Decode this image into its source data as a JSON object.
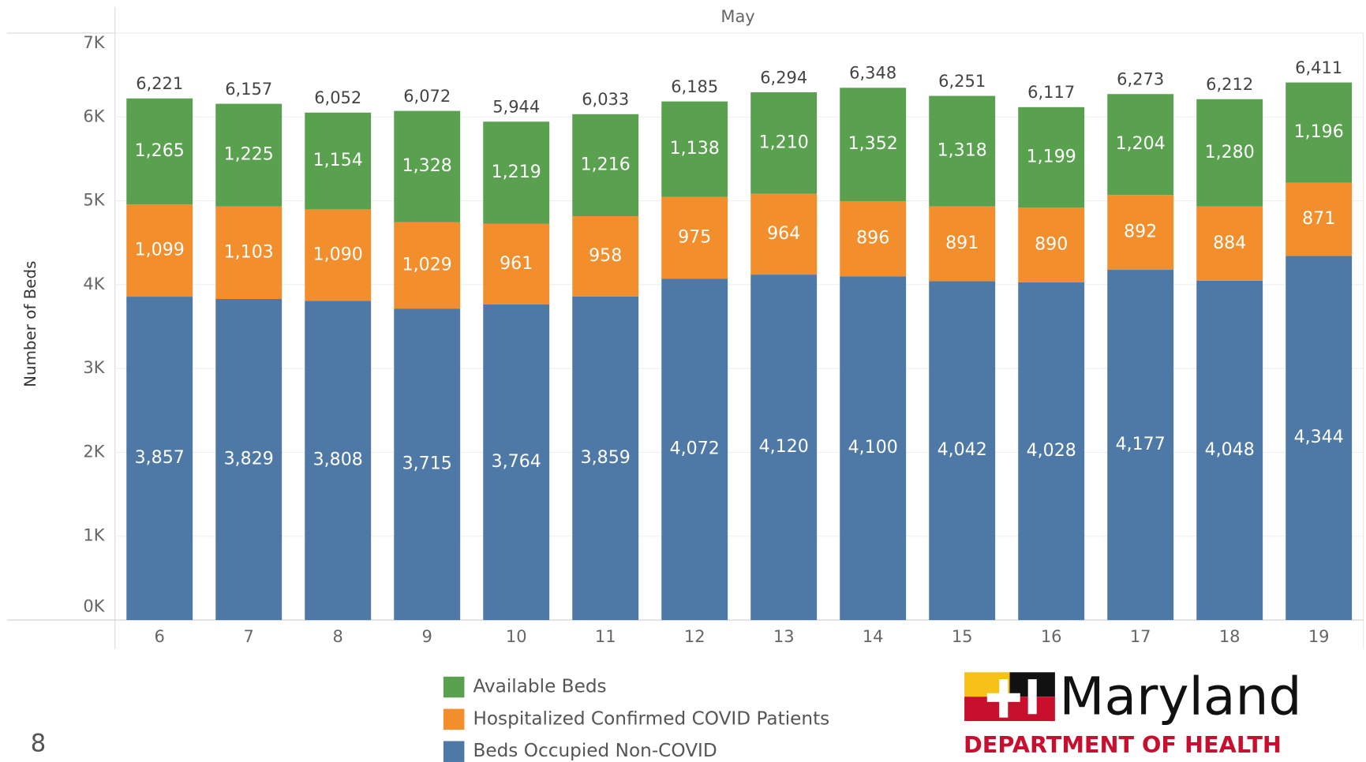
{
  "chart_data": {
    "type": "stacked_bar",
    "header": "May",
    "y_label": "Number of Beds",
    "categories": [
      "6",
      "7",
      "8",
      "9",
      "10",
      "11",
      "12",
      "13",
      "14",
      "15",
      "16",
      "17",
      "18",
      "19"
    ],
    "series": [
      {
        "name": "Beds Occupied Non-COVID",
        "color": "#4e79a7",
        "values": [
          3857,
          3829,
          3808,
          3715,
          3764,
          3859,
          4072,
          4120,
          4100,
          4042,
          4028,
          4177,
          4048,
          4344
        ],
        "value_labels": [
          "3,857",
          "3,829",
          "3,808",
          "3,715",
          "3,764",
          "3,859",
          "4,072",
          "4,120",
          "4,100",
          "4,042",
          "4,028",
          "4,177",
          "4,048",
          "4,344"
        ]
      },
      {
        "name": "Hospitalized Confirmed COVID Patients",
        "color": "#f28e2b",
        "values": [
          1099,
          1103,
          1090,
          1029,
          961,
          958,
          975,
          964,
          896,
          891,
          890,
          892,
          884,
          871
        ],
        "value_labels": [
          "1,099",
          "1,103",
          "1,090",
          "1,029",
          "961",
          "958",
          "975",
          "964",
          "896",
          "891",
          "890",
          "892",
          "884",
          "871"
        ]
      },
      {
        "name": "Available Beds",
        "color": "#59a14f",
        "values": [
          1265,
          1225,
          1154,
          1328,
          1219,
          1216,
          1138,
          1210,
          1352,
          1318,
          1199,
          1204,
          1280,
          1196
        ],
        "value_labels": [
          "1,265",
          "1,225",
          "1,154",
          "1,328",
          "1,219",
          "1,216",
          "1,138",
          "1,210",
          "1,352",
          "1,318",
          "1,199",
          "1,204",
          "1,280",
          "1,196"
        ]
      }
    ],
    "totals": [
      6221,
      6157,
      6052,
      6072,
      5944,
      6033,
      6185,
      6294,
      6348,
      6251,
      6117,
      6273,
      6212,
      6411
    ],
    "totals_labels": [
      "6,221",
      "6,157",
      "6,052",
      "6,072",
      "5,944",
      "6,033",
      "6,185",
      "6,294",
      "6,348",
      "6,251",
      "6,117",
      "6,273",
      "6,212",
      "6,411"
    ],
    "ylim": [
      0,
      7000
    ],
    "yticks": [
      {
        "value": 0,
        "label": "0K"
      },
      {
        "value": 1000,
        "label": "1K"
      },
      {
        "value": 2000,
        "label": "2K"
      },
      {
        "value": 3000,
        "label": "3K"
      },
      {
        "value": 4000,
        "label": "4K"
      },
      {
        "value": 5000,
        "label": "5K"
      },
      {
        "value": 6000,
        "label": "6K"
      },
      {
        "value": 7000,
        "label": "7K"
      }
    ],
    "grid": true
  },
  "page_number": "8",
  "logo": {
    "name": "Maryland",
    "subtitle": "DEPARTMENT OF HEALTH"
  }
}
